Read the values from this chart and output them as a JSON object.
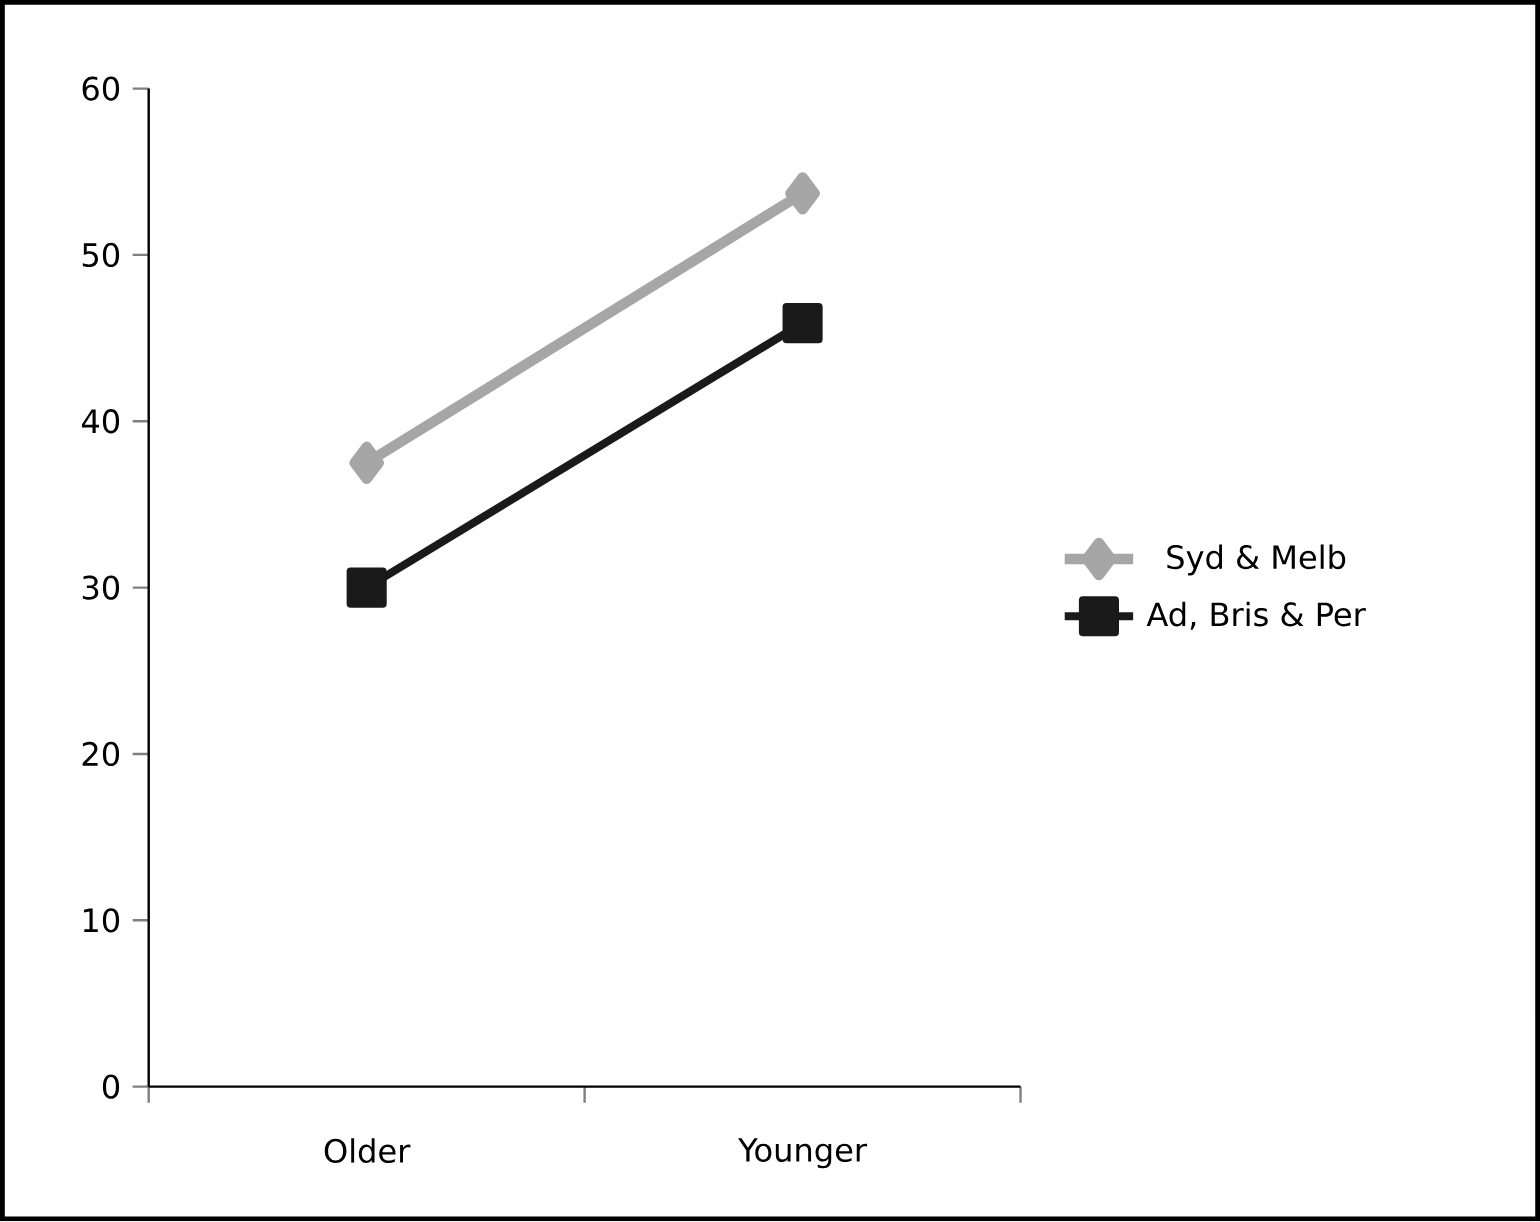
{
  "chart_data": {
    "type": "line",
    "categories": [
      "Older",
      "Younger"
    ],
    "series": [
      {
        "name": "Syd & Melb",
        "color": "#a6a6a6",
        "values": [
          37.5,
          53.7
        ],
        "marker": "diamond"
      },
      {
        "name": "Ad, Bris & Per",
        "color": "#1a1a1a",
        "values": [
          30,
          45.9
        ],
        "marker": "square"
      }
    ],
    "ylim": [
      0,
      60
    ],
    "yticks": [
      0,
      10,
      20,
      30,
      40,
      50,
      60
    ],
    "legend": "right",
    "grid": false,
    "line_style": "solid"
  }
}
